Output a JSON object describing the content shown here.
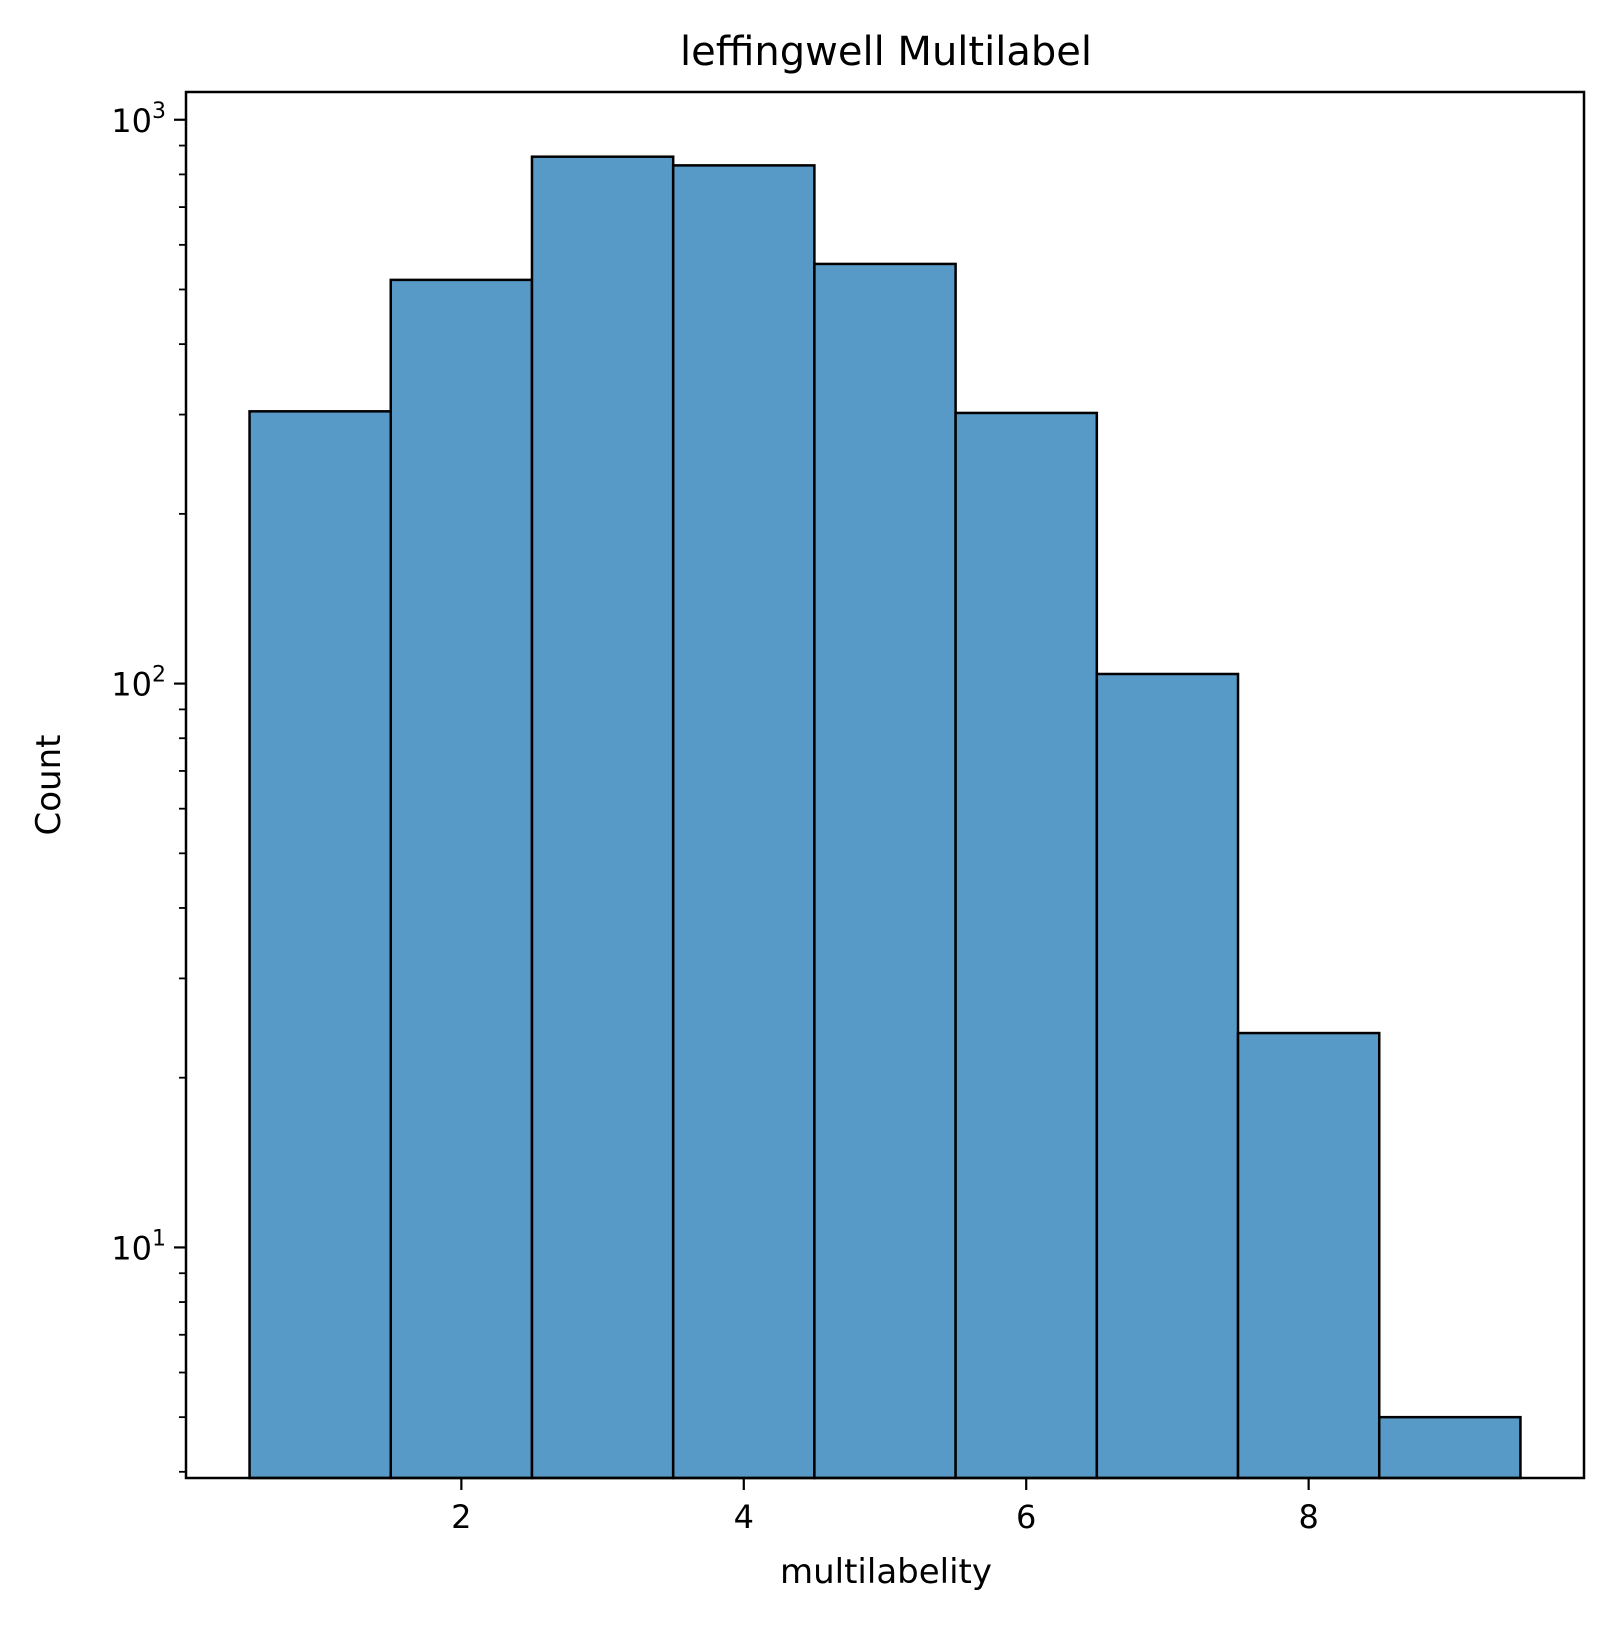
{
  "chart_data": {
    "type": "bar",
    "title": "leffingwell Multilabel",
    "xlabel": "multilabelity",
    "ylabel": "Count",
    "yscale": "log",
    "bins": [
      {
        "x": 1,
        "count": 304
      },
      {
        "x": 2,
        "count": 520
      },
      {
        "x": 3,
        "count": 860
      },
      {
        "x": 4,
        "count": 830
      },
      {
        "x": 5,
        "count": 555
      },
      {
        "x": 6,
        "count": 302
      },
      {
        "x": 7,
        "count": 104
      },
      {
        "x": 8,
        "count": 24
      },
      {
        "x": 9,
        "count": 5
      }
    ],
    "bin_width": 1,
    "xlim": [
      0.05,
      9.95
    ],
    "ylim": [
      3.9,
      1120
    ],
    "xticks": [
      2,
      4,
      6,
      8
    ],
    "yticks": [
      {
        "value": 10,
        "base": "10",
        "exp": "1"
      },
      {
        "value": 100,
        "base": "10",
        "exp": "2"
      },
      {
        "value": 1000,
        "base": "10",
        "exp": "3"
      }
    ],
    "bar_color": "#5799c7",
    "edge_color": "#000000",
    "grid": false,
    "legend": "none"
  }
}
